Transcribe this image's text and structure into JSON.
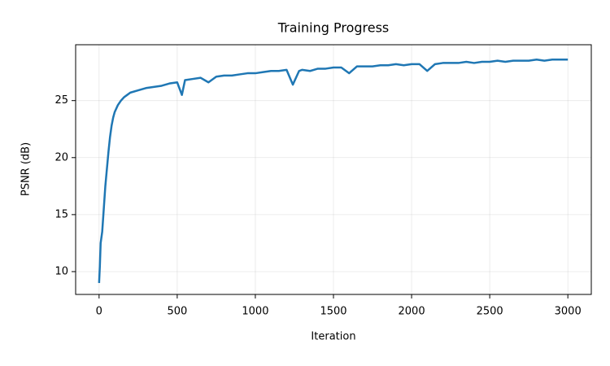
{
  "chart_data": {
    "type": "line",
    "title": "Training Progress",
    "x_label": "Iteration",
    "y_label": "PSNR (dB)",
    "x": [
      0,
      5,
      10,
      20,
      30,
      40,
      50,
      60,
      70,
      80,
      90,
      100,
      120,
      140,
      160,
      180,
      200,
      250,
      300,
      350,
      400,
      450,
      500,
      530,
      550,
      600,
      650,
      700,
      750,
      800,
      850,
      900,
      950,
      1000,
      1050,
      1100,
      1150,
      1200,
      1240,
      1280,
      1300,
      1350,
      1400,
      1450,
      1500,
      1550,
      1600,
      1650,
      1700,
      1750,
      1800,
      1850,
      1900,
      1950,
      2000,
      2050,
      2100,
      2150,
      2200,
      2250,
      2300,
      2350,
      2400,
      2450,
      2500,
      2550,
      2600,
      2650,
      2700,
      2750,
      2800,
      2850,
      2900,
      2950,
      3000
    ],
    "series": [
      {
        "name": "PSNR",
        "color": "#1f77b4",
        "values": [
          9.0,
          10.5,
          12.5,
          13.5,
          15.5,
          17.5,
          19.0,
          20.5,
          21.8,
          22.8,
          23.5,
          24.0,
          24.6,
          25.0,
          25.3,
          25.5,
          25.7,
          25.9,
          26.1,
          26.2,
          26.3,
          26.5,
          26.6,
          25.5,
          26.8,
          26.9,
          27.0,
          26.6,
          27.1,
          27.2,
          27.2,
          27.3,
          27.4,
          27.4,
          27.5,
          27.6,
          27.6,
          27.7,
          26.4,
          27.6,
          27.7,
          27.6,
          27.8,
          27.8,
          27.9,
          27.9,
          27.4,
          28.0,
          28.0,
          28.0,
          28.1,
          28.1,
          28.2,
          28.1,
          28.2,
          28.2,
          27.6,
          28.2,
          28.3,
          28.3,
          28.3,
          28.4,
          28.3,
          28.4,
          28.4,
          28.5,
          28.4,
          28.5,
          28.5,
          28.5,
          28.6,
          28.5,
          28.6,
          28.6,
          28.6
        ]
      }
    ],
    "xlim": [
      -150,
      3150
    ],
    "ylim": [
      8,
      29.9
    ],
    "xticks": [
      0,
      500,
      1000,
      1500,
      2000,
      2500,
      3000
    ],
    "yticks": [
      10,
      15,
      20,
      25
    ],
    "grid": true
  }
}
